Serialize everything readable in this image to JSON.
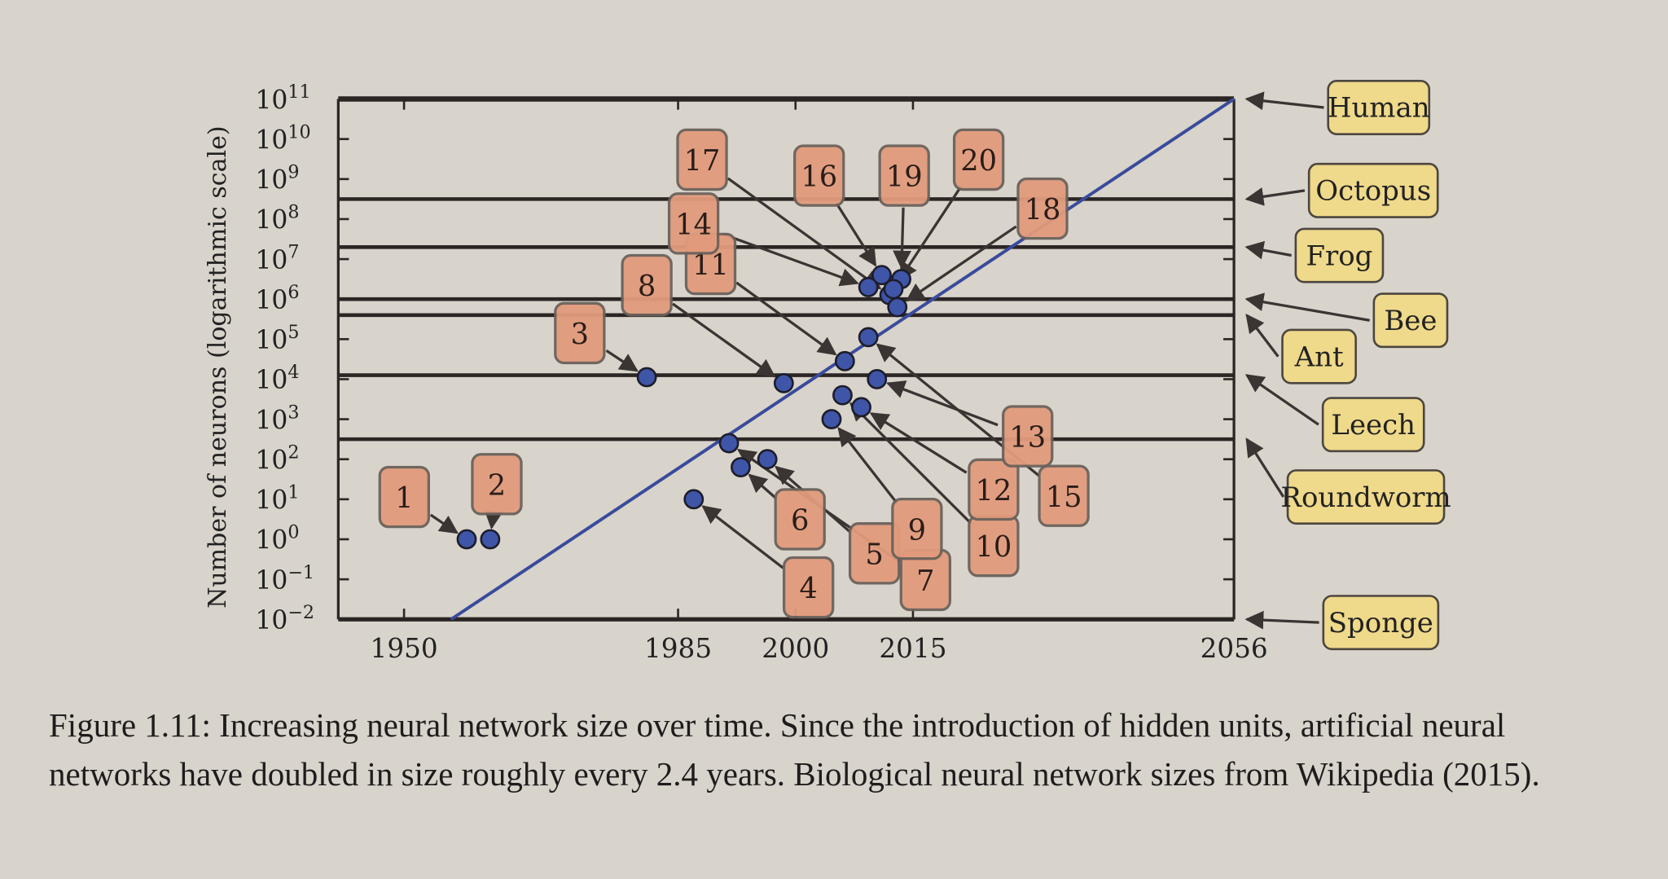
{
  "chart_data": {
    "type": "scatter",
    "title": "",
    "xlabel": "",
    "ylabel": "Number of neurons (logarithmic scale)",
    "xlim": [
      1941.6,
      2056
    ],
    "ylim_log10": [
      -2,
      11
    ],
    "x_ticks": [
      1950,
      1985,
      2000,
      2015,
      2056
    ],
    "y_ticks_log10": [
      -2,
      -1,
      0,
      1,
      2,
      3,
      4,
      5,
      6,
      7,
      8,
      9,
      10,
      11
    ],
    "y_tick_base": "10",
    "points": [
      {
        "label": "1",
        "year": 1958,
        "log10_neurons": 0.0
      },
      {
        "label": "2",
        "year": 1961,
        "log10_neurons": 0.0
      },
      {
        "label": "3",
        "year": 1981,
        "log10_neurons": 4.05
      },
      {
        "label": "4",
        "year": 1987,
        "log10_neurons": 1.0
      },
      {
        "label": "5",
        "year": 1996.4,
        "log10_neurons": 2.0
      },
      {
        "label": "6",
        "year": 1993,
        "log10_neurons": 1.8
      },
      {
        "label": "7",
        "year": 1991.5,
        "log10_neurons": 2.4
      },
      {
        "label": "8",
        "year": 1998.5,
        "log10_neurons": 3.9
      },
      {
        "label": "9",
        "year": 2004.6,
        "log10_neurons": 3.0
      },
      {
        "label": "10",
        "year": 2006,
        "log10_neurons": 3.6
      },
      {
        "label": "11",
        "year": 2006.3,
        "log10_neurons": 4.45
      },
      {
        "label": "12",
        "year": 2008.4,
        "log10_neurons": 3.3
      },
      {
        "label": "13",
        "year": 2010.4,
        "log10_neurons": 4.0
      },
      {
        "label": "14",
        "year": 2009.3,
        "log10_neurons": 6.3
      },
      {
        "label": "15",
        "year": 2009.3,
        "log10_neurons": 5.05
      },
      {
        "label": "16",
        "year": 2011,
        "log10_neurons": 6.6
      },
      {
        "label": "17",
        "year": 2012,
        "log10_neurons": 6.1
      },
      {
        "label": "18",
        "year": 2013,
        "log10_neurons": 5.8
      },
      {
        "label": "19",
        "year": 2013.5,
        "log10_neurons": 6.5
      },
      {
        "label": "20",
        "year": 2012.5,
        "log10_neurons": 6.25
      }
    ],
    "trend_line": {
      "description": "doubling every 2.4 years",
      "from": [
        1956,
        -2
      ],
      "to": [
        2056,
        11
      ]
    },
    "biological_references": [
      {
        "name": "Human",
        "log10_neurons": 11
      },
      {
        "name": "Octopus",
        "log10_neurons": 8.5
      },
      {
        "name": "Frog",
        "log10_neurons": 7.3
      },
      {
        "name": "Bee",
        "log10_neurons": 6.0
      },
      {
        "name": "Ant",
        "log10_neurons": 5.6
      },
      {
        "name": "Leech",
        "log10_neurons": 4.1
      },
      {
        "name": "Roundworm",
        "log10_neurons": 2.5
      },
      {
        "name": "Sponge",
        "log10_neurons": -2
      }
    ]
  },
  "colors": {
    "point": "#3f55a8",
    "trend": "#3a4b9c",
    "label_box": "#e29b7c",
    "organism_box": "#efd98a",
    "page": "#d8d3cb"
  },
  "caption": "Figure 1.11: Increasing neural network size over time. Since the introduction of hidden units, artificial neural networks have doubled in size roughly every 2.4 years. Biological neural network sizes from Wikipedia (2015)."
}
